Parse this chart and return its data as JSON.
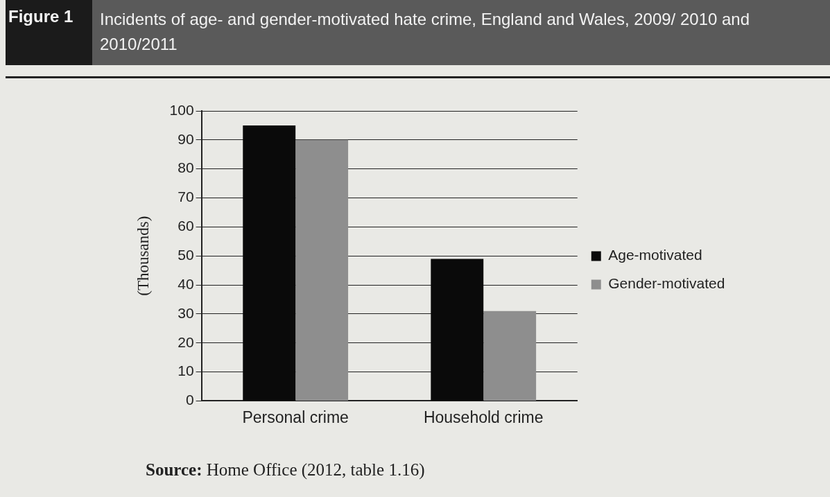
{
  "chart_data": {
    "type": "bar",
    "title": "Figure 1",
    "subtitle": "Incidents of age- and gender-motivated hate crime, England and Wales, 2009/ 2010 and 2010/2011",
    "ylabel": "(Thousands)",
    "categories": [
      "Personal crime",
      "Household crime"
    ],
    "series": [
      {
        "name": "Age-motivated",
        "color": "#0a0a0a",
        "values": [
          95,
          49
        ]
      },
      {
        "name": "Gender-motivated",
        "color": "#8e8e8e",
        "values": [
          90,
          31
        ]
      }
    ],
    "ylim": [
      0,
      100
    ],
    "yticks": [
      0,
      10,
      20,
      30,
      40,
      50,
      60,
      70,
      80,
      90,
      100
    ],
    "grid": "y",
    "legend": "right",
    "annotations": [
      "Source: Home Office (2012, table 1.16)"
    ]
  }
}
